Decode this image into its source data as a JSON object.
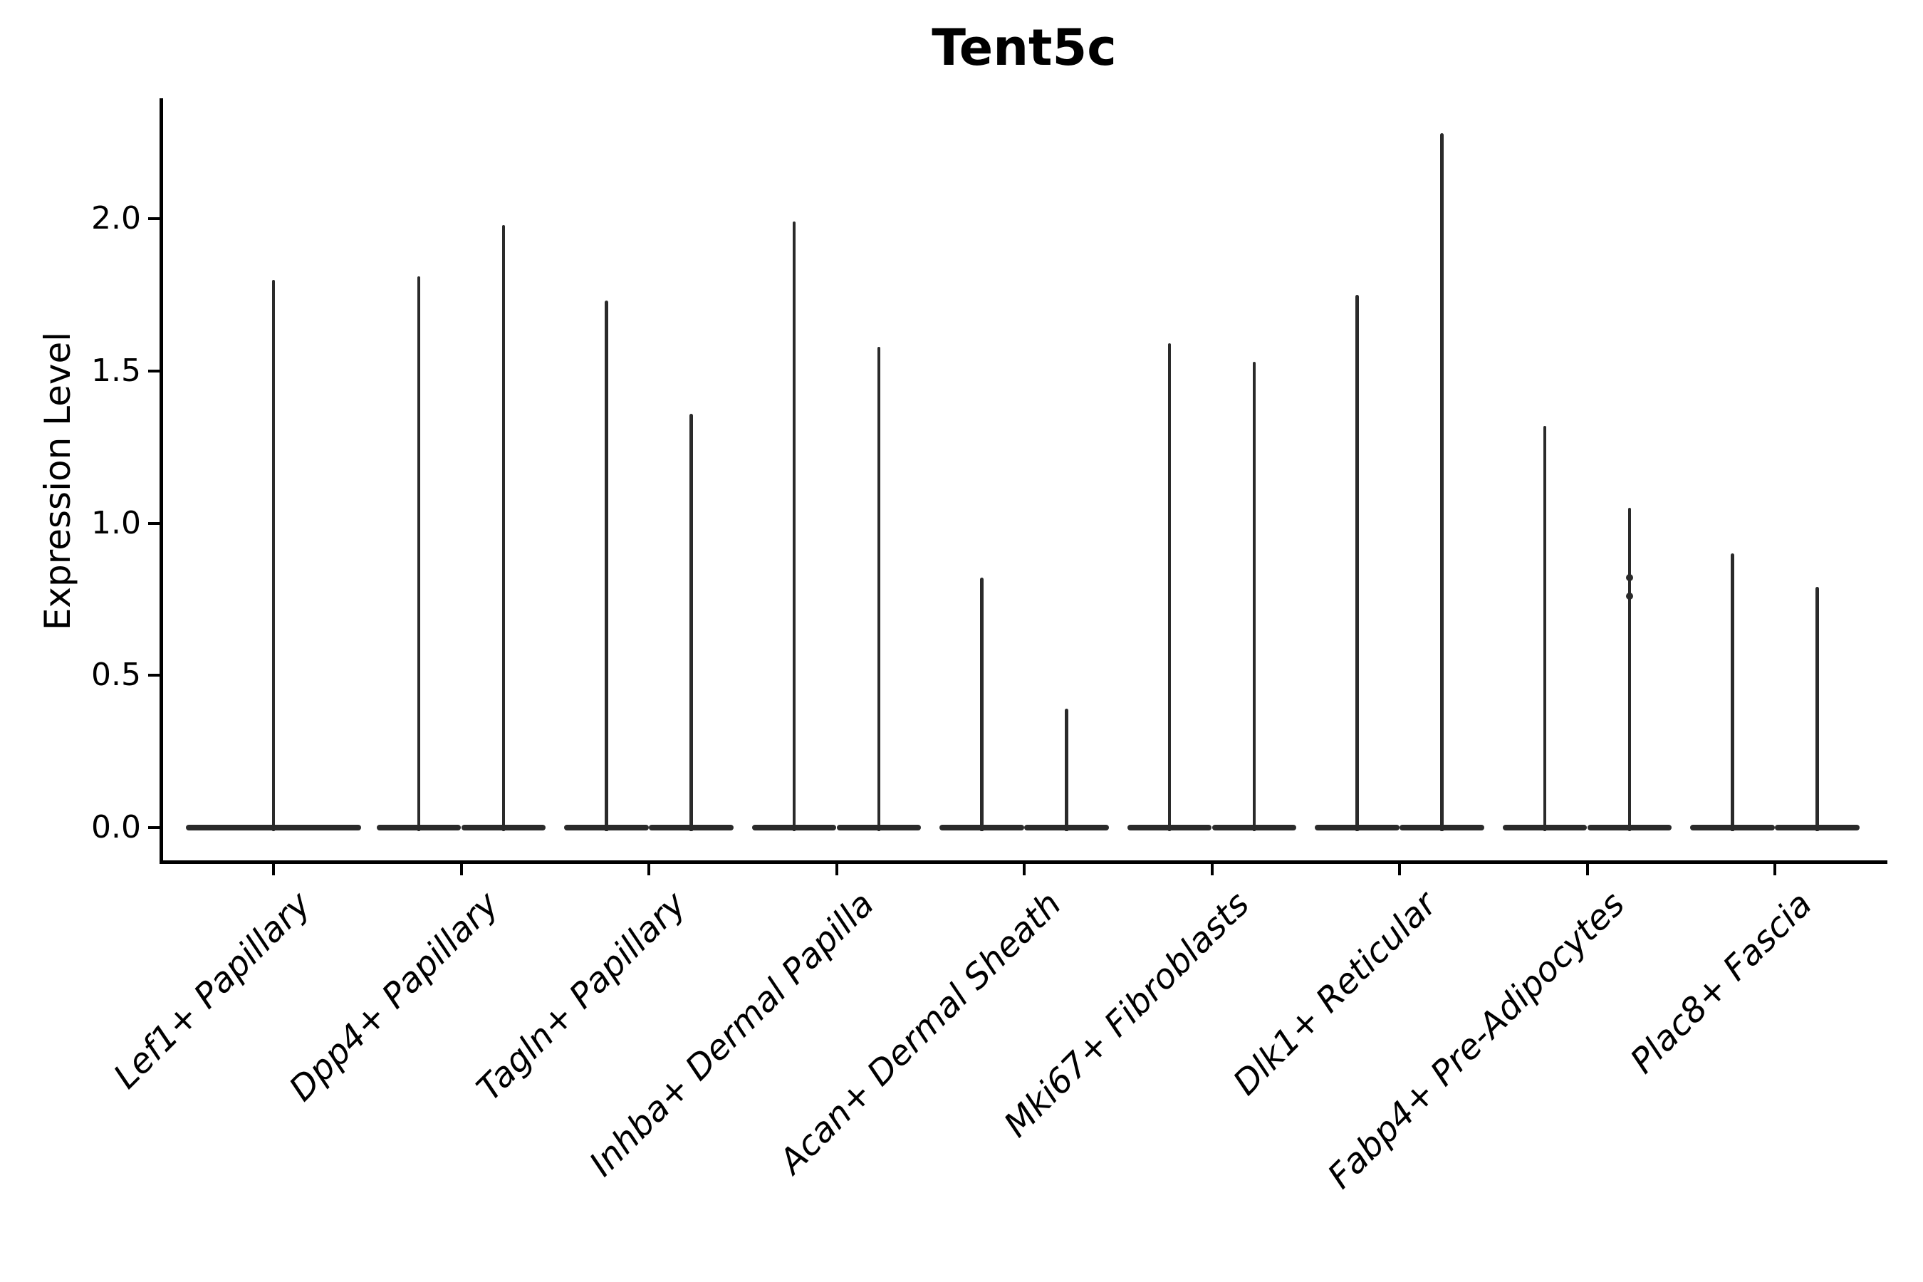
{
  "chart_data": {
    "type": "violin",
    "title": "Tent5c",
    "xlabel": "",
    "ylabel": "Expression Level",
    "ylim": [
      -0.11,
      2.39
    ],
    "grid": false,
    "legend": "none",
    "tick_label_style": "italic",
    "x_tick_rotation_deg": 45,
    "violin_color": "#2a2a2a",
    "axis_color": "#000000",
    "background_color": "#ffffff",
    "yticks": [
      {
        "label": "0.0",
        "value": 0.0
      },
      {
        "label": "0.5",
        "value": 0.5
      },
      {
        "label": "1.0",
        "value": 1.0
      },
      {
        "label": "1.5",
        "value": 1.5
      },
      {
        "label": "2.0",
        "value": 2.0
      }
    ],
    "categories": [
      {
        "label": "Lef1+ Papillary",
        "violins": [
          {
            "offset": 0.0,
            "width": 0.93,
            "peak": 1.8
          }
        ]
      },
      {
        "label": "Dpp4+ Papillary",
        "violins": [
          {
            "offset": -0.225,
            "width": 0.45,
            "peak": 1.81
          },
          {
            "offset": 0.225,
            "width": 0.45,
            "peak": 1.98
          }
        ]
      },
      {
        "label": "Tagln+ Papillary",
        "violins": [
          {
            "offset": -0.225,
            "width": 0.45,
            "peak": 1.73
          },
          {
            "offset": 0.225,
            "width": 0.45,
            "peak": 1.36
          }
        ]
      },
      {
        "label": "Inhba+ Dermal Papilla",
        "violins": [
          {
            "offset": -0.225,
            "width": 0.45,
            "peak": 1.99
          },
          {
            "offset": 0.225,
            "width": 0.45,
            "peak": 1.58
          }
        ]
      },
      {
        "label": "Acan+ Dermal Sheath",
        "violins": [
          {
            "offset": -0.225,
            "width": 0.45,
            "peak": 0.82
          },
          {
            "offset": 0.225,
            "width": 0.45,
            "peak": 0.39
          }
        ]
      },
      {
        "label": "Mki67+ Fibroblasts",
        "violins": [
          {
            "offset": -0.225,
            "width": 0.45,
            "peak": 1.59
          },
          {
            "offset": 0.225,
            "width": 0.45,
            "peak": 1.53
          }
        ]
      },
      {
        "label": "Dlk1+ Reticular",
        "violins": [
          {
            "offset": -0.225,
            "width": 0.45,
            "peak": 1.75
          },
          {
            "offset": 0.225,
            "width": 0.45,
            "peak": 2.28
          }
        ]
      },
      {
        "label": "Fabp4+ Pre-Adipocytes",
        "violins": [
          {
            "offset": -0.225,
            "width": 0.45,
            "peak": 1.32
          },
          {
            "offset": 0.225,
            "width": 0.45,
            "peak": 1.05
          }
        ]
      },
      {
        "label": "Plac8+ Fascia",
        "violins": [
          {
            "offset": -0.225,
            "width": 0.45,
            "peak": 0.9
          },
          {
            "offset": 0.225,
            "width": 0.45,
            "peak": 0.79
          }
        ]
      }
    ],
    "marker_dots": [
      {
        "category": 7,
        "offset": 0.225,
        "value": 0.82
      },
      {
        "category": 7,
        "offset": 0.225,
        "value": 0.76
      }
    ]
  }
}
